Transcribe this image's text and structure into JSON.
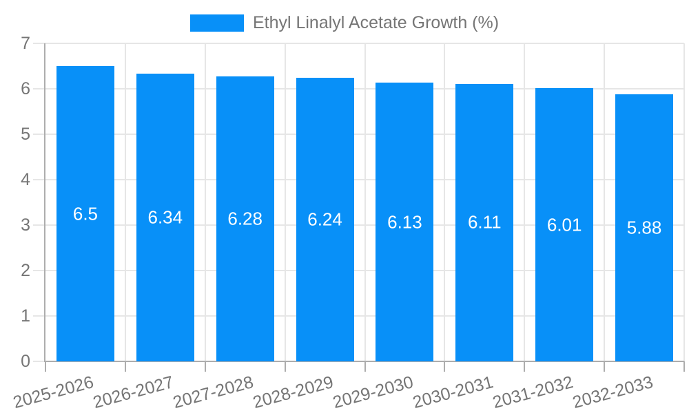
{
  "chart_data": {
    "type": "bar",
    "title": "",
    "legend": "Ethyl Linalyl Acetate Growth (%)",
    "legend_position": "top",
    "categories": [
      "2025-2026",
      "2026-2027",
      "2027-2028",
      "2028-2029",
      "2029-2030",
      "2030-2031",
      "2031-2032",
      "2032-2033"
    ],
    "values": [
      6.5,
      6.34,
      6.28,
      6.24,
      6.13,
      6.11,
      6.01,
      5.88
    ],
    "value_labels": [
      "6.5",
      "6.34",
      "6.28",
      "6.24",
      "6.13",
      "6.11",
      "6.01",
      "5.88"
    ],
    "xlabel": "",
    "ylabel": "",
    "ylim": [
      0,
      7
    ],
    "y_ticks": [
      0,
      1,
      2,
      3,
      4,
      5,
      6,
      7
    ],
    "grid": true,
    "colors": {
      "bar": "#0890F8",
      "grid": "#E6E6E6",
      "axis": "#ADADAD",
      "tick_text": "#757575",
      "value_text": "#FFFFFF",
      "legend_text": "#757575",
      "background": "#FFFFFF"
    }
  }
}
